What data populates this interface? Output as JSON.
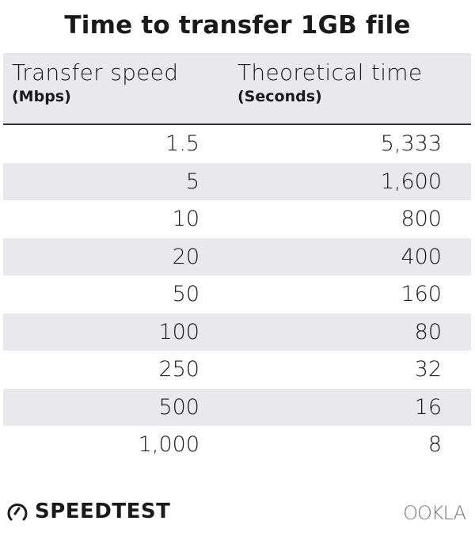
{
  "chart_data": {
    "type": "table",
    "title": "Time to transfer 1GB file",
    "columns": [
      {
        "label": "Transfer speed",
        "unit": "(Mbps)"
      },
      {
        "label": "Theoretical time",
        "unit": "(Seconds)"
      }
    ],
    "rows": [
      [
        "1.5",
        "5,333"
      ],
      [
        "5",
        "1,600"
      ],
      [
        "10",
        "800"
      ],
      [
        "20",
        "400"
      ],
      [
        "50",
        "160"
      ],
      [
        "100",
        "80"
      ],
      [
        "250",
        "32"
      ],
      [
        "500",
        "16"
      ],
      [
        "1,000",
        "8"
      ]
    ]
  },
  "colors": {
    "stripe": "#e9e8ec",
    "text": "#1a1a1a",
    "ookla": "#777777"
  },
  "footer": {
    "brand": "SPEEDTEST",
    "brand_icon": "speedometer-icon",
    "partner": "OOKLA"
  }
}
